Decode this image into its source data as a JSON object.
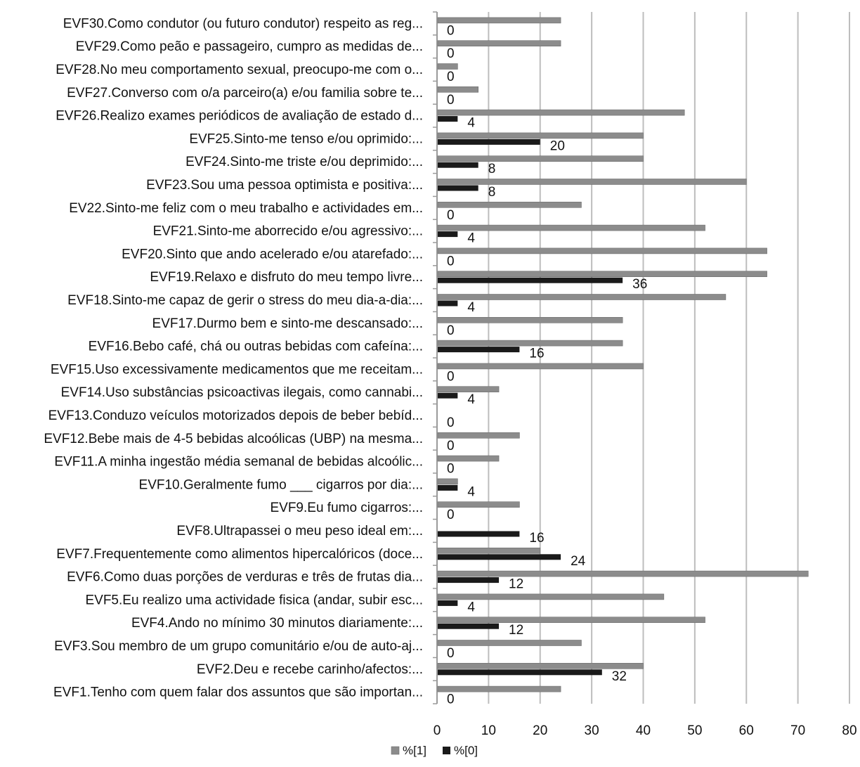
{
  "chart_data": {
    "type": "bar",
    "orientation": "horizontal",
    "categories": [
      "EVF30.Como condutor (ou futuro condutor) respeito as reg...",
      "EVF29.Como peão e passageiro, cumpro as medidas de...",
      "EVF28.No meu comportamento sexual, preocupo-me com o...",
      "EVF27.Converso com o/a parceiro(a) e/ou familia sobre te...",
      "EVF26.Realizo exames periódicos de avaliação de estado d...",
      "EVF25.Sinto-me tenso e/ou oprimido:...",
      "EVF24.Sinto-me triste e/ou deprimido:...",
      "EVF23.Sou uma pessoa optimista e positiva:...",
      "EV22.Sinto-me feliz com o meu trabalho e actividades em...",
      "EVF21.Sinto-me aborrecido e/ou agressivo:...",
      "EVF20.Sinto que ando acelerado e/ou atarefado:...",
      "EVF19.Relaxo e disfruto do meu tempo livre...",
      "EVF18.Sinto-me capaz de gerir o stress do meu dia-a-dia:...",
      "EVF17.Durmo bem e sinto-me descansado:...",
      "EVF16.Bebo café, chá ou outras bebidas com cafeína:...",
      "EVF15.Uso excessivamente medicamentos que me receitam...",
      "EVF14.Uso substâncias psicoactivas ilegais, como cannabi...",
      "EVF13.Conduzo veículos motorizados depois de beber bebíd...",
      "EVF12.Bebe mais de 4-5 bebidas alcoólicas (UBP) na mesma...",
      "EVF11.A minha ingestão média semanal de bebidas alcoólic...",
      "EVF10.Geralmente fumo ___ cigarros por dia:...",
      "EVF9.Eu fumo cigarros:...",
      "EVF8.Ultrapassei o meu peso ideal em:...",
      "EVF7.Frequentemente como alimentos hipercalóricos (doce...",
      "EVF6.Como duas porções de verduras e três de frutas dia...",
      "EVF5.Eu realizo uma actividade fisica (andar, subir esc...",
      "EVF4.Ando no mínimo 30 minutos diariamente:...",
      "EVF3.Sou membro de um grupo comunitário e/ou de auto-aj...",
      "EVF2.Deu e recebe carinho/afectos:...",
      "EVF1.Tenho com quem falar dos assuntos que são importan..."
    ],
    "series": [
      {
        "name": "%[1]",
        "color": "#8c8c8c",
        "values": [
          24,
          24,
          4,
          8,
          48,
          40,
          40,
          60,
          28,
          52,
          64,
          64,
          56,
          36,
          36,
          40,
          12,
          0,
          16,
          12,
          4,
          16,
          0,
          20,
          72,
          44,
          52,
          28,
          40,
          24
        ]
      },
      {
        "name": "%[0]",
        "color": "#1a1a1a",
        "values": [
          0,
          0,
          0,
          0,
          4,
          20,
          8,
          8,
          0,
          4,
          0,
          36,
          4,
          0,
          16,
          0,
          4,
          0,
          0,
          0,
          4,
          0,
          16,
          24,
          12,
          4,
          12,
          0,
          32,
          0
        ],
        "data_labels": [
          "0",
          "0",
          "0",
          "0",
          "4",
          "20",
          "8",
          "8",
          "0",
          "4",
          "0",
          "36",
          "4",
          "0",
          "16",
          "0",
          "4",
          "0",
          "0",
          "0",
          "4",
          "0",
          "16",
          "24",
          "12",
          "4",
          "12",
          "0",
          "32",
          "0"
        ]
      }
    ],
    "x_ticks": [
      "0",
      "10",
      "20",
      "30",
      "40",
      "50",
      "60",
      "70",
      "80"
    ],
    "xlim": [
      0,
      80
    ],
    "grid": true,
    "legend_position": "bottom-center"
  }
}
